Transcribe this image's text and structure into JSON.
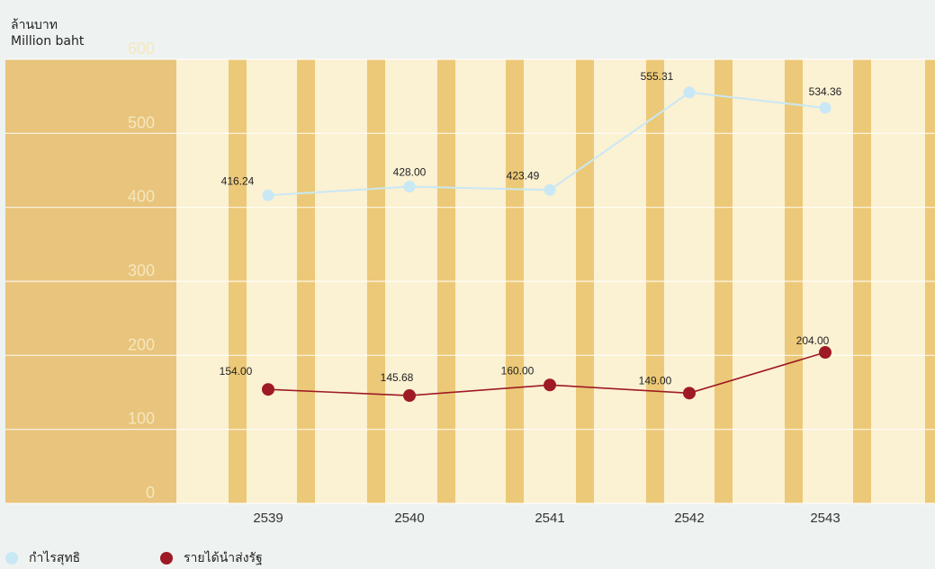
{
  "unit_label_th": "ล้านบาท",
  "unit_label_en": "Million baht",
  "chart_data": {
    "type": "line",
    "categories": [
      "2539",
      "2540",
      "2541",
      "2542",
      "2543"
    ],
    "ylim": [
      0,
      600
    ],
    "yticks": [
      0,
      100,
      200,
      300,
      400,
      500,
      600
    ],
    "grid": true,
    "series": [
      {
        "name": "กำไรสุทธิ",
        "color": "#c9e8f5",
        "values": [
          416.24,
          428.0,
          423.49,
          555.31,
          534.36
        ],
        "labels": [
          "416.24",
          "428.00",
          "423.49",
          "555.31",
          "534.36"
        ]
      },
      {
        "name": "รายได้นำส่งรัฐ",
        "color": "#9e1a25",
        "values": [
          154.0,
          145.68,
          160.0,
          149.0,
          204.0
        ],
        "labels": [
          "154.00",
          "145.68",
          "160.00",
          "149.00",
          "204.00"
        ]
      }
    ],
    "legend_position": "bottom-left"
  }
}
